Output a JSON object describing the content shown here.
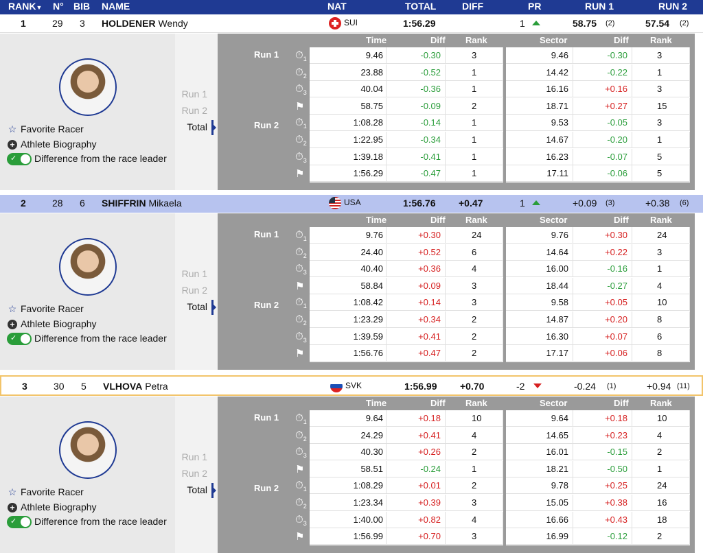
{
  "header": {
    "rank": "RANK",
    "no": "N°",
    "bib": "BIB",
    "name": "NAME",
    "nat": "NAT",
    "total": "TOTAL",
    "diff": "DIFF",
    "pr": "PR",
    "run1": "RUN 1",
    "run2": "RUN 2"
  },
  "table_headers": {
    "time": "Time",
    "diff": "Diff",
    "rank": "Rank",
    "sector": "Sector",
    "sdiff": "Diff",
    "srank": "Rank"
  },
  "links": {
    "favorite": "Favorite Racer",
    "bio": "Athlete Biography",
    "diffleader": "Difference from the race leader"
  },
  "runs": {
    "run1": "Run 1",
    "run2": "Run 2",
    "total": "Total"
  },
  "racers": [
    {
      "rank": "1",
      "no": "29",
      "bib": "3",
      "last": "HOLDENER",
      "first": "Wendy",
      "nat": "SUI",
      "total": "1:56.29",
      "diff": "",
      "pr": "1",
      "pr_dir": "up",
      "run1": "58.75",
      "run1_rank": "(2)",
      "run2": "57.54",
      "run2_rank": "(2)",
      "rows": [
        [
          "9.46",
          "-0.30",
          "3",
          "9.46",
          "-0.30",
          "3"
        ],
        [
          "23.88",
          "-0.52",
          "1",
          "14.42",
          "-0.22",
          "1"
        ],
        [
          "40.04",
          "-0.36",
          "1",
          "16.16",
          "+0.16",
          "3"
        ],
        [
          "58.75",
          "-0.09",
          "2",
          "18.71",
          "+0.27",
          "15"
        ],
        [
          "1:08.28",
          "-0.14",
          "1",
          "9.53",
          "-0.05",
          "3"
        ],
        [
          "1:22.95",
          "-0.34",
          "1",
          "14.67",
          "-0.20",
          "1"
        ],
        [
          "1:39.18",
          "-0.41",
          "1",
          "16.23",
          "-0.07",
          "5"
        ],
        [
          "1:56.29",
          "-0.47",
          "1",
          "17.11",
          "-0.06",
          "5"
        ]
      ]
    },
    {
      "rank": "2",
      "no": "28",
      "bib": "6",
      "last": "SHIFFRIN",
      "first": "Mikaela",
      "nat": "USA",
      "total": "1:56.76",
      "diff": "+0.47",
      "pr": "1",
      "pr_dir": "up",
      "run1": "+0.09",
      "run1_rank": "(3)",
      "run2": "+0.38",
      "run2_rank": "(6)",
      "rows": [
        [
          "9.76",
          "+0.30",
          "24",
          "9.76",
          "+0.30",
          "24"
        ],
        [
          "24.40",
          "+0.52",
          "6",
          "14.64",
          "+0.22",
          "3"
        ],
        [
          "40.40",
          "+0.36",
          "4",
          "16.00",
          "-0.16",
          "1"
        ],
        [
          "58.84",
          "+0.09",
          "3",
          "18.44",
          "-0.27",
          "4"
        ],
        [
          "1:08.42",
          "+0.14",
          "3",
          "9.58",
          "+0.05",
          "10"
        ],
        [
          "1:23.29",
          "+0.34",
          "2",
          "14.87",
          "+0.20",
          "8"
        ],
        [
          "1:39.59",
          "+0.41",
          "2",
          "16.30",
          "+0.07",
          "6"
        ],
        [
          "1:56.76",
          "+0.47",
          "2",
          "17.17",
          "+0.06",
          "8"
        ]
      ]
    },
    {
      "rank": "3",
      "no": "30",
      "bib": "5",
      "last": "VLHOVA",
      "first": "Petra",
      "nat": "SVK",
      "total": "1:56.99",
      "diff": "+0.70",
      "pr": "-2",
      "pr_dir": "down",
      "run1": "-0.24",
      "run1_rank": "(1)",
      "run2": "+0.94",
      "run2_rank": "(11)",
      "rows": [
        [
          "9.64",
          "+0.18",
          "10",
          "9.64",
          "+0.18",
          "10"
        ],
        [
          "24.29",
          "+0.41",
          "4",
          "14.65",
          "+0.23",
          "4"
        ],
        [
          "40.30",
          "+0.26",
          "2",
          "16.01",
          "-0.15",
          "2"
        ],
        [
          "58.51",
          "-0.24",
          "1",
          "18.21",
          "-0.50",
          "1"
        ],
        [
          "1:08.29",
          "+0.01",
          "2",
          "9.78",
          "+0.25",
          "24"
        ],
        [
          "1:23.34",
          "+0.39",
          "3",
          "15.05",
          "+0.38",
          "16"
        ],
        [
          "1:40.00",
          "+0.82",
          "4",
          "16.66",
          "+0.43",
          "18"
        ],
        [
          "1:56.99",
          "+0.70",
          "3",
          "16.99",
          "-0.12",
          "2"
        ]
      ]
    }
  ],
  "colors": {
    "header_bg": "#1f3a93",
    "positive": "#d62020",
    "negative": "#2a9d3a",
    "highlight": "#b7c3ef",
    "border_gold": "#f2c46a"
  }
}
